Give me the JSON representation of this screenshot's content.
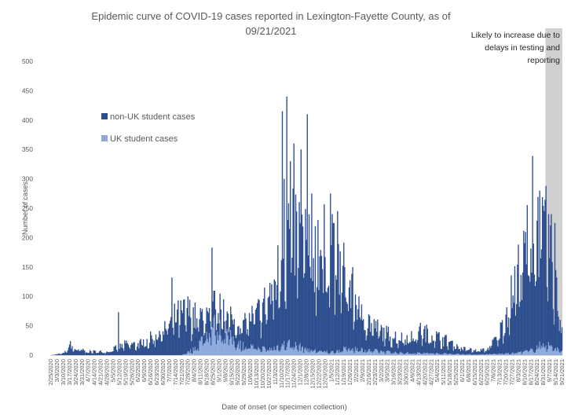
{
  "chart_data": {
    "type": "bar",
    "stacked": true,
    "title_line1": "Epidemic curve of COVID-19 cases reported in Lexington-Fayette County, as of",
    "title_line2": "09/21/2021",
    "xlabel": "Date of onset (or specimen collection)",
    "ylabel": "Number of cases",
    "ylim": [
      0,
      500
    ],
    "yticks": [
      0,
      50,
      100,
      150,
      200,
      250,
      300,
      350,
      400,
      450,
      500
    ],
    "grid": false,
    "legend_position": "left",
    "colors": {
      "non_uk": "#2e4f8f",
      "uk": "#8faadc",
      "shade": "#d0d0d0"
    },
    "series": [
      {
        "name": "non-UK student cases",
        "key": "non_uk"
      },
      {
        "name": "UK student cases",
        "key": "uk"
      }
    ],
    "annotation": {
      "lines": [
        "Likely to increase due to",
        "delays in testing and",
        "reporting"
      ],
      "shaded_from": "9/3/2021",
      "shaded_to": "9/21/2021"
    },
    "date_start": "2/25/2020",
    "date_end": "9/21/2021",
    "xticks": [
      "2/25/2020",
      "3/3/2020",
      "3/10/2020",
      "3/17/2020",
      "3/24/2020",
      "3/31/2020",
      "4/7/2020",
      "4/14/2020",
      "4/21/2020",
      "4/28/2020",
      "5/5/2020",
      "5/12/2020",
      "5/19/2020",
      "5/26/2020",
      "6/2/2020",
      "6/9/2020",
      "6/16/2020",
      "6/23/2020",
      "6/30/2020",
      "7/7/2020",
      "7/14/2020",
      "7/21/2020",
      "7/28/2020",
      "8/4/2020",
      "8/11/2020",
      "8/18/2020",
      "8/25/2020",
      "9/1/2020",
      "9/8/2020",
      "9/15/2020",
      "9/22/2020",
      "9/29/2020",
      "10/6/2020",
      "10/13/2020",
      "10/20/2020",
      "10/27/2020",
      "11/3/2020",
      "11/10/2020",
      "11/17/2020",
      "11/24/2020",
      "12/1/2020",
      "12/8/2020",
      "12/15/2020",
      "12/22/2020",
      "12/29/2020",
      "1/5/2021",
      "1/12/2021",
      "1/19/2021",
      "1/26/2021",
      "2/2/2021",
      "2/9/2021",
      "2/16/2021",
      "2/23/2021",
      "3/2/2021",
      "3/9/2021",
      "3/16/2021",
      "3/23/2021",
      "3/30/2021",
      "4/6/2021",
      "4/13/2021",
      "4/20/2021",
      "4/27/2021",
      "5/4/2021",
      "5/11/2021",
      "5/18/2021",
      "5/25/2021",
      "6/1/2021",
      "6/8/2021",
      "6/15/2021",
      "6/22/2021",
      "6/29/2021",
      "7/6/2021",
      "7/13/2021",
      "7/20/2021",
      "7/27/2021",
      "8/3/2021",
      "8/10/2021",
      "8/17/2021",
      "8/24/2021",
      "8/31/2021",
      "9/7/2021",
      "9/14/2021",
      "9/21/2021"
    ],
    "trend_non_uk": [
      [
        "2/25/2020",
        0
      ],
      [
        "3/10/2020",
        3
      ],
      [
        "3/17/2020",
        12
      ],
      [
        "3/24/2020",
        10
      ],
      [
        "4/7/2020",
        6
      ],
      [
        "4/28/2020",
        6
      ],
      [
        "5/5/2020",
        10
      ],
      [
        "5/19/2020",
        18
      ],
      [
        "6/2/2020",
        18
      ],
      [
        "6/16/2020",
        28
      ],
      [
        "7/1/2020",
        45
      ],
      [
        "7/15/2020",
        65
      ],
      [
        "7/28/2020",
        72
      ],
      [
        "8/11/2020",
        40
      ],
      [
        "8/25/2020",
        35
      ],
      [
        "9/8/2020",
        30
      ],
      [
        "9/22/2020",
        35
      ],
      [
        "10/6/2020",
        48
      ],
      [
        "10/20/2020",
        70
      ],
      [
        "11/3/2020",
        110
      ],
      [
        "11/17/2020",
        190
      ],
      [
        "12/1/2020",
        190
      ],
      [
        "12/15/2020",
        165
      ],
      [
        "12/29/2020",
        175
      ],
      [
        "1/12/2021",
        150
      ],
      [
        "1/26/2021",
        105
      ],
      [
        "2/9/2021",
        60
      ],
      [
        "2/23/2021",
        40
      ],
      [
        "3/9/2021",
        30
      ],
      [
        "3/23/2021",
        25
      ],
      [
        "4/6/2021",
        28
      ],
      [
        "4/20/2021",
        35
      ],
      [
        "5/4/2021",
        28
      ],
      [
        "5/18/2021",
        20
      ],
      [
        "6/1/2021",
        10
      ],
      [
        "6/15/2021",
        7
      ],
      [
        "6/29/2021",
        8
      ],
      [
        "7/13/2021",
        35
      ],
      [
        "7/27/2021",
        100
      ],
      [
        "8/10/2021",
        170
      ],
      [
        "8/24/2021",
        200
      ],
      [
        "9/3/2021",
        190
      ],
      [
        "9/10/2021",
        150
      ],
      [
        "9/17/2021",
        70
      ],
      [
        "9/21/2021",
        40
      ]
    ],
    "trend_uk": [
      [
        "2/25/2020",
        0
      ],
      [
        "7/21/2020",
        0
      ],
      [
        "8/4/2020",
        10
      ],
      [
        "8/18/2020",
        35
      ],
      [
        "8/25/2020",
        50
      ],
      [
        "9/1/2020",
        45
      ],
      [
        "9/15/2020",
        28
      ],
      [
        "9/29/2020",
        15
      ],
      [
        "10/27/2020",
        10
      ],
      [
        "11/17/2020",
        20
      ],
      [
        "12/15/2020",
        8
      ],
      [
        "1/5/2021",
        5
      ],
      [
        "1/26/2021",
        12
      ],
      [
        "2/16/2021",
        8
      ],
      [
        "3/23/2021",
        4
      ],
      [
        "5/4/2021",
        3
      ],
      [
        "6/15/2021",
        1
      ],
      [
        "7/27/2021",
        3
      ],
      [
        "8/17/2021",
        8
      ],
      [
        "8/31/2021",
        20
      ],
      [
        "9/14/2021",
        12
      ],
      [
        "9/21/2021",
        6
      ]
    ],
    "spikes_total": [
      [
        "3/17/2020",
        18
      ],
      [
        "3/18/2020",
        24
      ],
      [
        "5/11/2020",
        73
      ],
      [
        "7/10/2020",
        132
      ],
      [
        "7/28/2020",
        100
      ],
      [
        "8/24/2020",
        183
      ],
      [
        "9/6/2020",
        95
      ],
      [
        "10/27/2020",
        100
      ],
      [
        "11/11/2020",
        415
      ],
      [
        "11/13/2020",
        300
      ],
      [
        "11/16/2020",
        440
      ],
      [
        "11/20/2020",
        330
      ],
      [
        "11/24/2020",
        360
      ],
      [
        "12/2/2020",
        350
      ],
      [
        "12/9/2020",
        410
      ],
      [
        "12/14/2020",
        275
      ],
      [
        "12/21/2020",
        230
      ],
      [
        "1/4/2021",
        275
      ],
      [
        "1/6/2021",
        240
      ],
      [
        "1/12/2021",
        245
      ],
      [
        "4/15/2021",
        55
      ],
      [
        "8/19/2021",
        339
      ],
      [
        "8/27/2021",
        280
      ],
      [
        "9/1/2021",
        245
      ],
      [
        "9/6/2021",
        240
      ],
      [
        "9/13/2021",
        225
      ],
      [
        "9/19/2021",
        60
      ]
    ]
  }
}
